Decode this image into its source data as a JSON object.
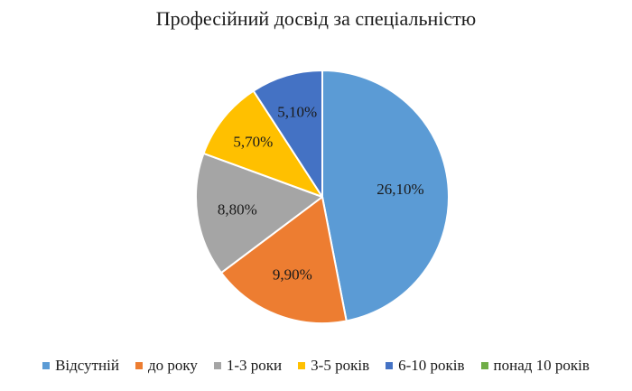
{
  "chart_data": {
    "type": "pie",
    "title": "Професійний досвід за спеціальністю",
    "categories": [
      "Відсутній",
      "до року",
      "1-3 роки",
      "3-5 років",
      "6-10 років",
      "понад 10 років"
    ],
    "values": [
      26.1,
      9.9,
      8.8,
      5.7,
      5.1,
      0.0
    ],
    "value_labels": [
      "26,10%",
      "9,90%",
      "8,80%",
      "5,70%",
      "5,10%",
      ""
    ],
    "colors": [
      "#5B9BD5",
      "#ED7D31",
      "#A5A5A5",
      "#FFC000",
      "#4472C4",
      "#70AD47"
    ],
    "legend_position": "bottom",
    "start_angle": "top, clockwise"
  }
}
